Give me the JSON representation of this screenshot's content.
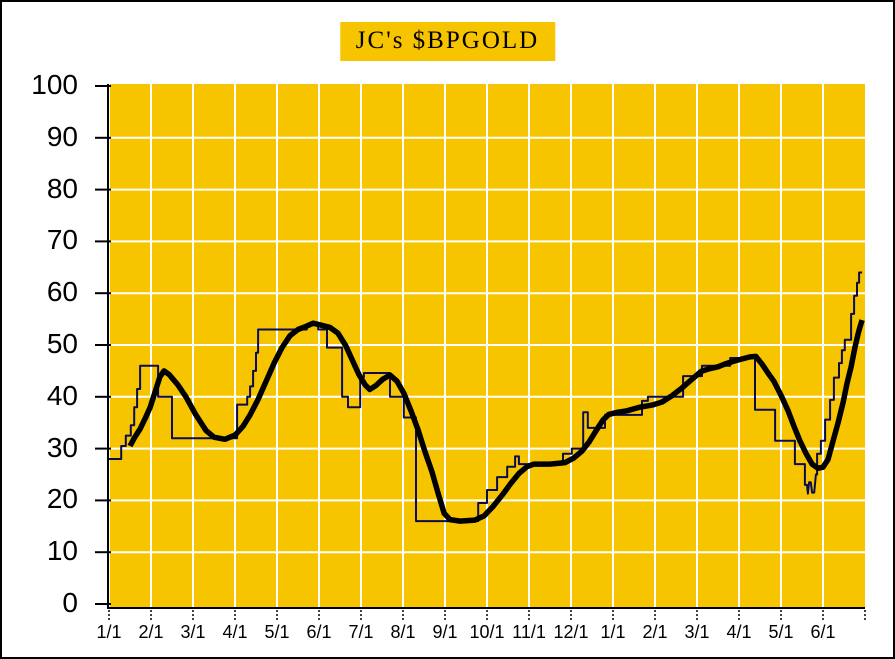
{
  "colors": {
    "plot_bg": "#F7C500",
    "grid": "#FFFFFF",
    "axis": "#000000",
    "text": "#000000",
    "title_bg": "#F7C500",
    "bpi_line": "#0B0B50",
    "ma_line": "#000000"
  },
  "chart_data": {
    "type": "line",
    "title": "JC's $BPGOLD",
    "xlabel": "",
    "ylabel": "",
    "grid": true,
    "ylim": [
      0,
      100
    ],
    "y_tick_step": 10,
    "x_span_months": 18,
    "y_ticks": [
      "100",
      "90",
      "80",
      "70",
      "60",
      "50",
      "40",
      "30",
      "20",
      "10",
      "0"
    ],
    "x_ticks": [
      "1/1",
      "2/1",
      "3/1",
      "4/1",
      "5/1",
      "6/1",
      "7/1",
      "8/1",
      "9/1",
      "10/1",
      "11/1",
      "12/1",
      "1/1",
      "2/1",
      "3/1",
      "4/1",
      "5/1",
      "6/1"
    ],
    "series": [
      {
        "name": "bullish-percent",
        "style": "thin-step",
        "color": "#0B0B50",
        "width": 2,
        "points": [
          [
            0,
            28
          ],
          [
            0.29,
            28
          ],
          [
            0.29,
            30.5
          ],
          [
            0.4,
            30.5
          ],
          [
            0.4,
            32.5
          ],
          [
            0.52,
            32.5
          ],
          [
            0.52,
            34.5
          ],
          [
            0.6,
            34.5
          ],
          [
            0.6,
            38
          ],
          [
            0.67,
            38
          ],
          [
            0.67,
            41.5
          ],
          [
            0.74,
            41.5
          ],
          [
            0.74,
            46
          ],
          [
            1.17,
            46
          ],
          [
            1.17,
            40
          ],
          [
            1.5,
            40
          ],
          [
            1.5,
            32
          ],
          [
            3.05,
            32
          ],
          [
            3.05,
            38.5
          ],
          [
            3.29,
            38.5
          ],
          [
            3.29,
            40
          ],
          [
            3.36,
            40
          ],
          [
            3.36,
            42
          ],
          [
            3.43,
            42
          ],
          [
            3.43,
            45
          ],
          [
            3.5,
            45
          ],
          [
            3.5,
            48.5
          ],
          [
            3.55,
            48.5
          ],
          [
            3.55,
            53
          ],
          [
            4.71,
            53
          ],
          [
            4.71,
            54
          ],
          [
            4.98,
            54
          ],
          [
            4.98,
            53
          ],
          [
            5.19,
            53
          ],
          [
            5.19,
            49.5
          ],
          [
            5.55,
            49.5
          ],
          [
            5.55,
            40
          ],
          [
            5.69,
            40
          ],
          [
            5.69,
            38
          ],
          [
            5.98,
            38
          ],
          [
            5.98,
            43.8
          ],
          [
            6.07,
            43.8
          ],
          [
            6.07,
            44.6
          ],
          [
            6.69,
            44.6
          ],
          [
            6.69,
            40
          ],
          [
            7.02,
            40
          ],
          [
            7.02,
            36
          ],
          [
            7.31,
            36
          ],
          [
            7.31,
            16
          ],
          [
            8.79,
            16
          ],
          [
            8.79,
            19.5
          ],
          [
            9.0,
            19.5
          ],
          [
            9.0,
            22
          ],
          [
            9.24,
            22
          ],
          [
            9.24,
            24.5
          ],
          [
            9.48,
            24.5
          ],
          [
            9.48,
            26.5
          ],
          [
            9.67,
            26.5
          ],
          [
            9.67,
            28.5
          ],
          [
            9.76,
            28.5
          ],
          [
            9.76,
            27
          ],
          [
            10.81,
            27
          ],
          [
            10.81,
            29
          ],
          [
            11.02,
            29
          ],
          [
            11.02,
            30
          ],
          [
            11.29,
            30
          ],
          [
            11.29,
            37
          ],
          [
            11.4,
            37
          ],
          [
            11.4,
            34
          ],
          [
            11.81,
            34
          ],
          [
            11.81,
            36.5
          ],
          [
            12.69,
            36.5
          ],
          [
            12.69,
            39.2
          ],
          [
            12.83,
            39.2
          ],
          [
            12.83,
            40
          ],
          [
            13.67,
            40
          ],
          [
            13.67,
            44
          ],
          [
            14.12,
            44
          ],
          [
            14.12,
            46
          ],
          [
            14.79,
            46
          ],
          [
            14.79,
            47.5
          ],
          [
            15.38,
            47.5
          ],
          [
            15.38,
            37.5
          ],
          [
            15.86,
            37.5
          ],
          [
            15.86,
            31.5
          ],
          [
            16.33,
            31.5
          ],
          [
            16.33,
            27
          ],
          [
            16.57,
            27
          ],
          [
            16.57,
            23
          ],
          [
            16.62,
            23
          ],
          [
            16.64,
            21.3
          ],
          [
            16.67,
            23.5
          ],
          [
            16.71,
            23.5
          ],
          [
            16.74,
            21.5
          ],
          [
            16.79,
            21.5
          ],
          [
            16.83,
            25
          ],
          [
            16.86,
            25
          ],
          [
            16.86,
            29
          ],
          [
            16.95,
            29
          ],
          [
            16.95,
            31.5
          ],
          [
            17.05,
            31.5
          ],
          [
            17.05,
            35.6
          ],
          [
            17.17,
            35.6
          ],
          [
            17.17,
            39.4
          ],
          [
            17.26,
            39.4
          ],
          [
            17.26,
            43.7
          ],
          [
            17.38,
            43.7
          ],
          [
            17.38,
            46.5
          ],
          [
            17.45,
            46.5
          ],
          [
            17.45,
            49
          ],
          [
            17.52,
            49
          ],
          [
            17.52,
            51
          ],
          [
            17.67,
            51
          ],
          [
            17.67,
            56
          ],
          [
            17.74,
            56
          ],
          [
            17.74,
            59.5
          ],
          [
            17.81,
            59.5
          ],
          [
            17.81,
            62
          ],
          [
            17.86,
            62
          ],
          [
            17.86,
            64
          ],
          [
            17.93,
            64
          ]
        ]
      },
      {
        "name": "moving-average",
        "style": "thick-smooth",
        "color": "#000000",
        "width": 5.5,
        "points": [
          [
            0.5,
            30.5
          ],
          [
            0.6,
            32
          ],
          [
            0.74,
            33.8
          ],
          [
            0.86,
            35.8
          ],
          [
            0.98,
            38
          ],
          [
            1.1,
            41
          ],
          [
            1.21,
            43.8
          ],
          [
            1.31,
            45
          ],
          [
            1.43,
            44.3
          ],
          [
            1.64,
            42.3
          ],
          [
            1.83,
            40
          ],
          [
            2.07,
            36.5
          ],
          [
            2.31,
            33.5
          ],
          [
            2.5,
            32.2
          ],
          [
            2.76,
            31.8
          ],
          [
            3.0,
            32.6
          ],
          [
            3.19,
            34.3
          ],
          [
            3.36,
            36.5
          ],
          [
            3.55,
            39.5
          ],
          [
            3.74,
            43
          ],
          [
            3.93,
            46.5
          ],
          [
            4.12,
            49.5
          ],
          [
            4.31,
            51.8
          ],
          [
            4.5,
            53
          ],
          [
            4.69,
            53.6
          ],
          [
            4.86,
            54.2
          ],
          [
            5.02,
            53.9
          ],
          [
            5.26,
            53.4
          ],
          [
            5.45,
            52.3
          ],
          [
            5.64,
            49.8
          ],
          [
            5.81,
            46.8
          ],
          [
            5.95,
            44.3
          ],
          [
            6.1,
            42.3
          ],
          [
            6.21,
            41.4
          ],
          [
            6.36,
            42.2
          ],
          [
            6.52,
            43.4
          ],
          [
            6.69,
            44.2
          ],
          [
            6.86,
            43
          ],
          [
            7.02,
            40.7
          ],
          [
            7.19,
            37.3
          ],
          [
            7.36,
            33.6
          ],
          [
            7.52,
            29.5
          ],
          [
            7.69,
            25.5
          ],
          [
            7.83,
            21.5
          ],
          [
            7.98,
            17.5
          ],
          [
            8.12,
            16.3
          ],
          [
            8.36,
            16
          ],
          [
            8.71,
            16.2
          ],
          [
            8.93,
            17
          ],
          [
            9.14,
            18.8
          ],
          [
            9.36,
            21
          ],
          [
            9.57,
            23.3
          ],
          [
            9.76,
            25.2
          ],
          [
            9.95,
            26.5
          ],
          [
            10.12,
            27
          ],
          [
            10.5,
            27
          ],
          [
            10.86,
            27.3
          ],
          [
            11.07,
            28.2
          ],
          [
            11.26,
            29.5
          ],
          [
            11.43,
            31.3
          ],
          [
            11.6,
            33.5
          ],
          [
            11.76,
            35.5
          ],
          [
            11.9,
            36.6
          ],
          [
            12.1,
            37
          ],
          [
            12.33,
            37.3
          ],
          [
            12.64,
            38
          ],
          [
            12.93,
            38.4
          ],
          [
            13.17,
            39
          ],
          [
            13.4,
            40.2
          ],
          [
            13.64,
            41.7
          ],
          [
            13.88,
            43.4
          ],
          [
            14.1,
            44.9
          ],
          [
            14.29,
            45.4
          ],
          [
            14.5,
            45.8
          ],
          [
            14.69,
            46.4
          ],
          [
            14.88,
            46.9
          ],
          [
            15.07,
            47.3
          ],
          [
            15.26,
            47.7
          ],
          [
            15.4,
            47.8
          ],
          [
            15.55,
            46.3
          ],
          [
            15.69,
            44.6
          ],
          [
            15.83,
            43
          ],
          [
            16.0,
            40.3
          ],
          [
            16.17,
            37.3
          ],
          [
            16.31,
            34.3
          ],
          [
            16.45,
            31.5
          ],
          [
            16.6,
            29
          ],
          [
            16.74,
            27
          ],
          [
            16.88,
            26.2
          ],
          [
            17.0,
            26.4
          ],
          [
            17.12,
            27.9
          ],
          [
            17.24,
            31.5
          ],
          [
            17.36,
            35
          ],
          [
            17.48,
            39
          ],
          [
            17.57,
            42.5
          ],
          [
            17.67,
            45.8
          ],
          [
            17.76,
            49.5
          ],
          [
            17.83,
            52
          ],
          [
            17.88,
            53.5
          ],
          [
            17.93,
            54.8
          ]
        ]
      }
    ]
  }
}
